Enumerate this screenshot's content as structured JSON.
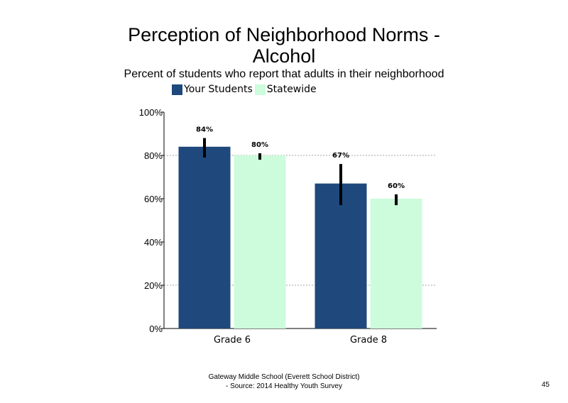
{
  "colors": {
    "your_students": "#1f497d",
    "statewide": "#ccfcdc",
    "error_bar": "#000000",
    "grid": "#a6a6a6"
  },
  "footer": {
    "line1": "Gateway Middle School (Everett School District)",
    "line2": "- Source: 2014 Healthy Youth Survey"
  },
  "page_number": "45",
  "chart_data": {
    "type": "bar",
    "title": "Perception of Neighborhood Norms -\nAlcohol",
    "subtitle": "Percent of students who report that adults in their neighborhood",
    "categories": [
      "Grade 6",
      "Grade 8"
    ],
    "series": [
      {
        "name": "Your Students",
        "values": [
          84,
          67
        ],
        "labels": [
          "84%",
          "67%"
        ],
        "error": [
          [
            79,
            88
          ],
          [
            57,
            76
          ]
        ]
      },
      {
        "name": "Statewide",
        "values": [
          80,
          60
        ],
        "labels": [
          "80%",
          "60%"
        ],
        "error": [
          [
            78,
            81
          ],
          [
            57,
            62
          ]
        ]
      }
    ],
    "ylim": [
      0,
      100
    ],
    "yticks": [
      0,
      20,
      40,
      60,
      80,
      100
    ],
    "ytick_labels": [
      "0%",
      "20%",
      "40%",
      "60%",
      "80%",
      "100%"
    ],
    "gridlines": [
      20,
      80
    ],
    "legend": "top",
    "xlabel": "",
    "ylabel": ""
  }
}
